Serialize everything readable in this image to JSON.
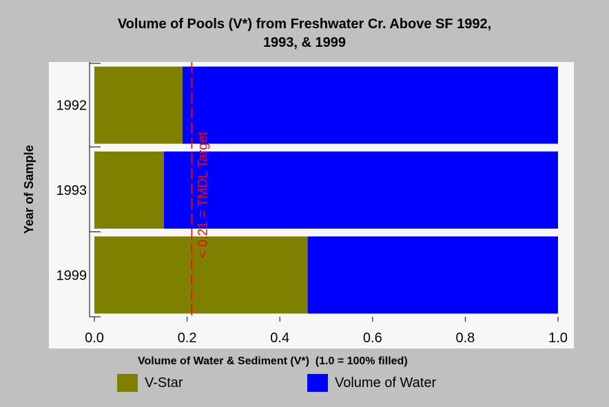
{
  "title_lines": [
    "Volume of Pools (V*) from Freshwater Cr. Above SF 1992,",
    "1993, & 1999"
  ],
  "chart_data": {
    "type": "bar",
    "orientation": "horizontal",
    "stacked": true,
    "title": "Volume of Pools (V*) from Freshwater Cr. Above SF 1992, 1993, & 1999",
    "xlabel": "Volume of Water & Sediment (V*)  (1.0 = 100% filled)",
    "ylabel": "Year of Sample",
    "categories": [
      "1992",
      "1993",
      "1999"
    ],
    "series": [
      {
        "name": "V-Star",
        "values": [
          0.19,
          0.15,
          0.46
        ],
        "color": "#808000"
      },
      {
        "name": "Volume of Water",
        "values": [
          0.81,
          0.85,
          0.54
        ],
        "color": "#0000ff"
      }
    ],
    "xlim": [
      0,
      1.0
    ],
    "xticks": [
      "0.0",
      "0.2",
      "0.4",
      "0.6",
      "0.8",
      "1.0"
    ],
    "reference_line": {
      "x": 0.21,
      "label": "< 0.21 = TMDL Target",
      "color": "#ff0000",
      "style": "dashed"
    },
    "grid": false,
    "legend_position": "bottom"
  }
}
